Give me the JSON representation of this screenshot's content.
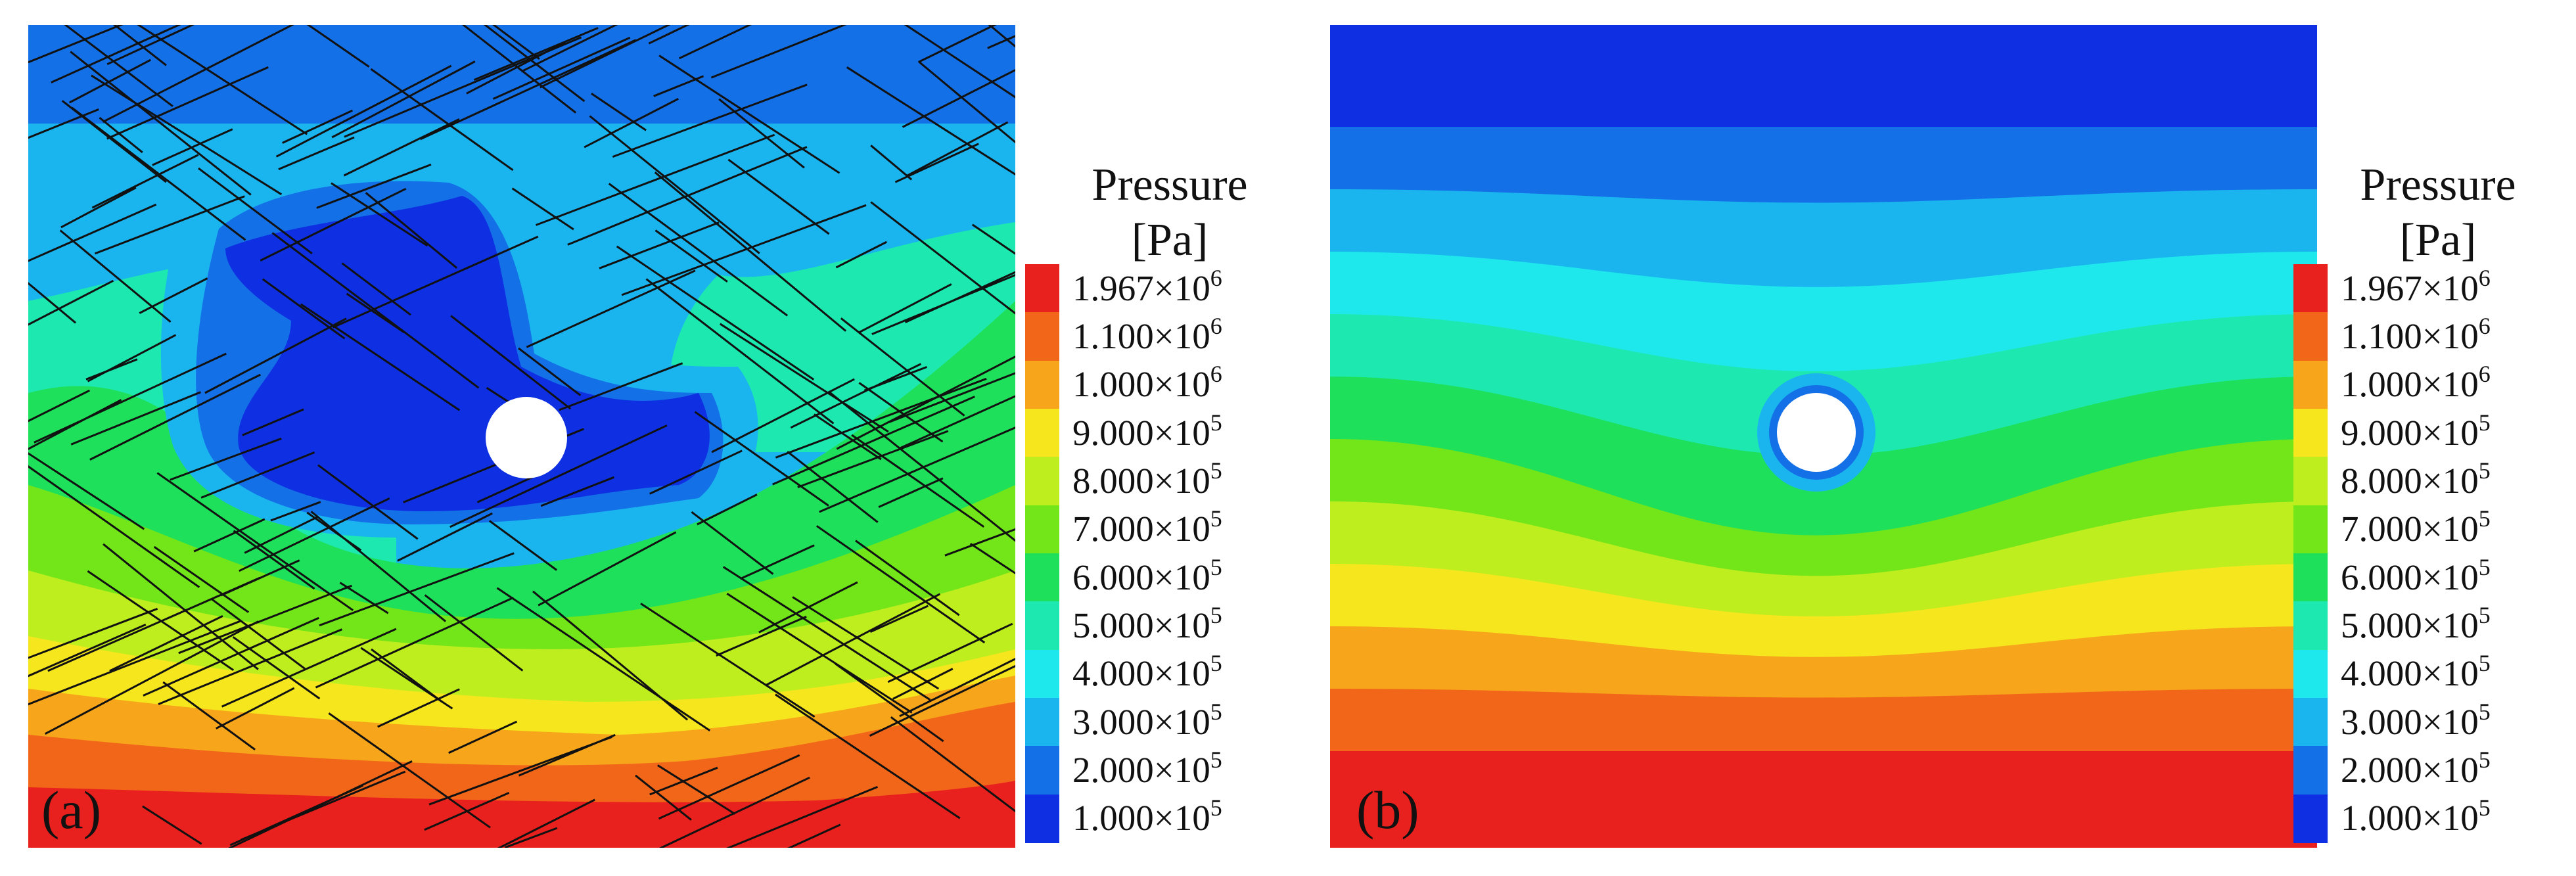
{
  "panels": [
    {
      "label": "(a)",
      "legend_title": "Pressure",
      "legend_unit": "[Pa]",
      "fractures": true
    },
    {
      "label": "(b)",
      "legend_title": "Pressure",
      "legend_unit": "[Pa]",
      "fractures": false
    }
  ],
  "legend_levels": [
    {
      "label": "1.967×10",
      "exp": "6",
      "color": "#e8201e"
    },
    {
      "label": "1.100×10",
      "exp": "6",
      "color": "#f2661a"
    },
    {
      "label": "1.000×10",
      "exp": "6",
      "color": "#f7a51a"
    },
    {
      "label": "9.000×10",
      "exp": "5",
      "color": "#f5e61e"
    },
    {
      "label": "8.000×10",
      "exp": "5",
      "color": "#bfee1f"
    },
    {
      "label": "7.000×10",
      "exp": "5",
      "color": "#72e619"
    },
    {
      "label": "6.000×10",
      "exp": "5",
      "color": "#1fe05a"
    },
    {
      "label": "5.000×10",
      "exp": "5",
      "color": "#1de8b0"
    },
    {
      "label": "4.000×10",
      "exp": "5",
      "color": "#1ee8ec"
    },
    {
      "label": "3.000×10",
      "exp": "5",
      "color": "#1ab5ef"
    },
    {
      "label": "2.000×10",
      "exp": "5",
      "color": "#1470e6"
    },
    {
      "label": "1.000×10",
      "exp": "5",
      "color": "#0f2fe2"
    }
  ]
}
